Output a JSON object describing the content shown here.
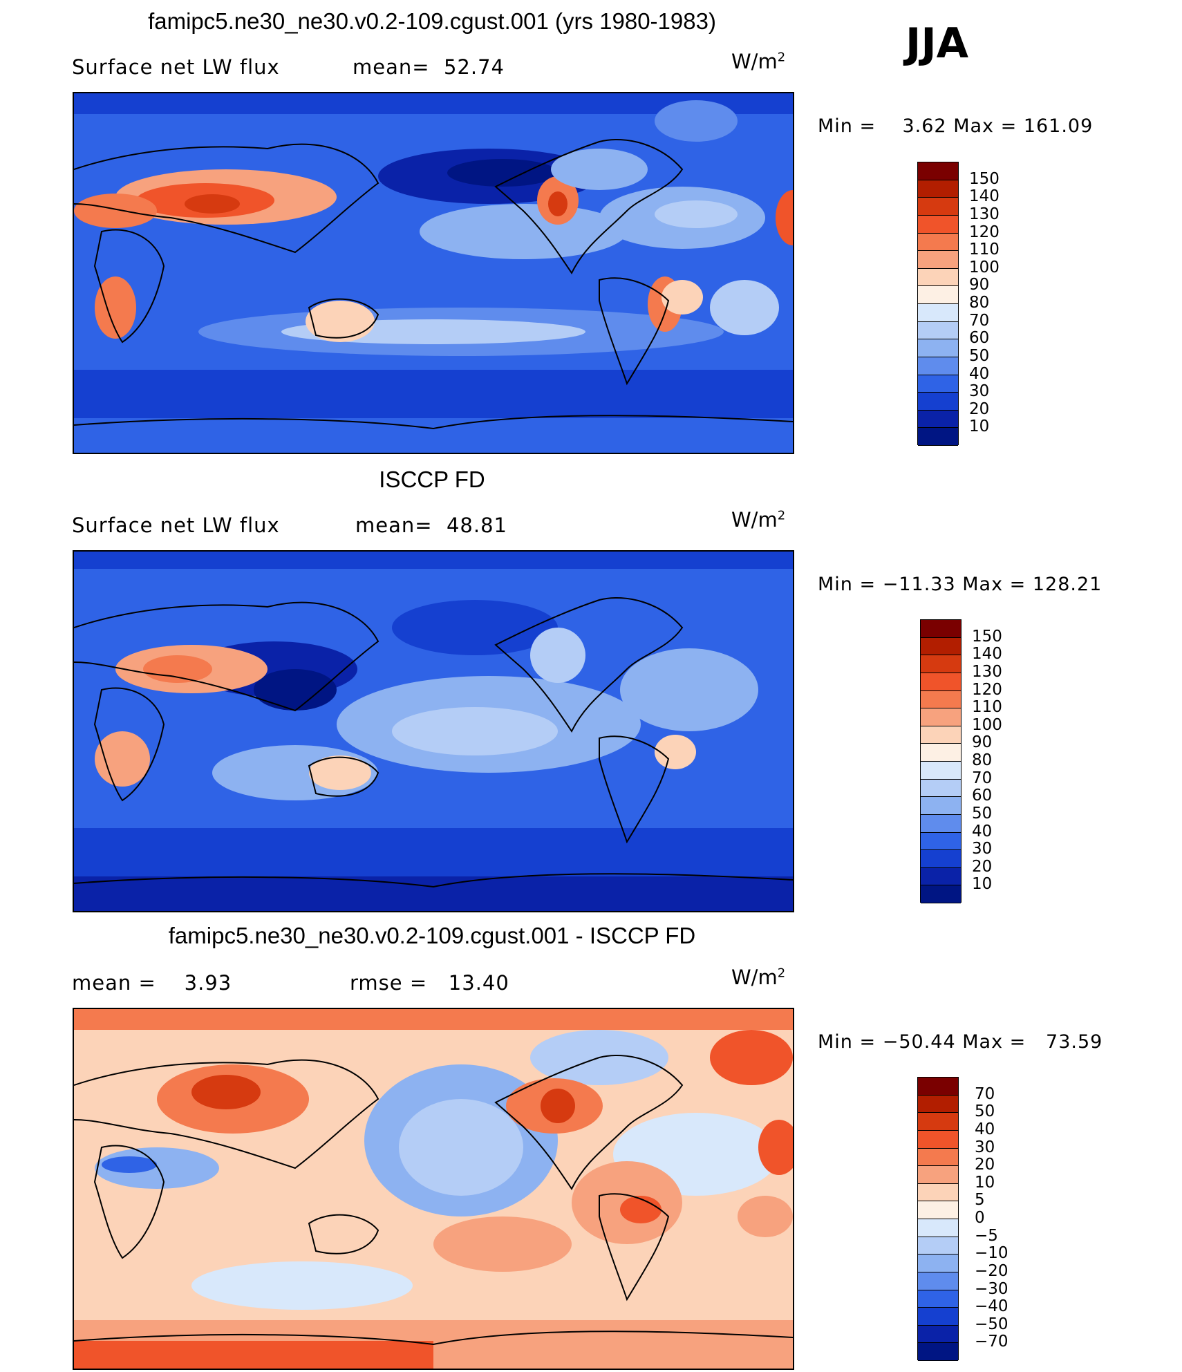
{
  "season": "JJA",
  "units": "W/m",
  "units_exp": "2",
  "panels": [
    {
      "title": "famipc5.ne30_ne30.v0.2-109.cgust.001 (yrs 1980-1983)",
      "left_label": "Surface net LW flux",
      "stat_label": "mean=",
      "stat_value": "52.74",
      "min_label": "Min =",
      "min_value": "3.62",
      "max_label": "Max =",
      "max_value": "161.09",
      "colorbar_levels": [
        "150",
        "140",
        "130",
        "120",
        "110",
        "100",
        "90",
        "80",
        "70",
        "60",
        "50",
        "40",
        "30",
        "20",
        "10"
      ],
      "colorbar_colors": [
        "#7a0000",
        "#b21e00",
        "#d63a10",
        "#f0542a",
        "#f47a4e",
        "#f7a27e",
        "#fcd3b8",
        "#fdf0e4",
        "#d8e8fb",
        "#b4cdf6",
        "#8db2f1",
        "#5f8ced",
        "#2f63e6",
        "#1540d0",
        "#0a22a8",
        "#001583"
      ]
    },
    {
      "title": "ISCCP FD",
      "left_label": "Surface net LW flux",
      "stat_label": "mean=",
      "stat_value": "48.81",
      "min_label": "Min =",
      "min_value": "−11.33",
      "max_label": "Max =",
      "max_value": "128.21",
      "colorbar_levels": [
        "150",
        "140",
        "130",
        "120",
        "110",
        "100",
        "90",
        "80",
        "70",
        "60",
        "50",
        "40",
        "30",
        "20",
        "10"
      ],
      "colorbar_colors": [
        "#7a0000",
        "#b21e00",
        "#d63a10",
        "#f0542a",
        "#f47a4e",
        "#f7a27e",
        "#fcd3b8",
        "#fdf0e4",
        "#d8e8fb",
        "#b4cdf6",
        "#8db2f1",
        "#5f8ced",
        "#2f63e6",
        "#1540d0",
        "#0a22a8",
        "#001583"
      ]
    },
    {
      "title": "famipc5.ne30_ne30.v0.2-109.cgust.001 - ISCCP FD",
      "left_label": "mean =",
      "left_value": "3.93",
      "stat_label": "rmse =",
      "stat_value": "13.40",
      "min_label": "Min =",
      "min_value": "−50.44",
      "max_label": "Max =",
      "max_value": "73.59",
      "colorbar_levels": [
        "70",
        "50",
        "40",
        "30",
        "20",
        "10",
        "5",
        "0",
        "−5",
        "−10",
        "−20",
        "−30",
        "−40",
        "−50",
        "−70"
      ],
      "colorbar_colors": [
        "#7a0000",
        "#b21e00",
        "#d63a10",
        "#f0542a",
        "#f47a4e",
        "#f7a27e",
        "#fcd3b8",
        "#fdf0e4",
        "#d8e8fb",
        "#b4cdf6",
        "#8db2f1",
        "#5f8ced",
        "#2f63e6",
        "#1540d0",
        "#0a22a8",
        "#001583"
      ]
    }
  ]
}
